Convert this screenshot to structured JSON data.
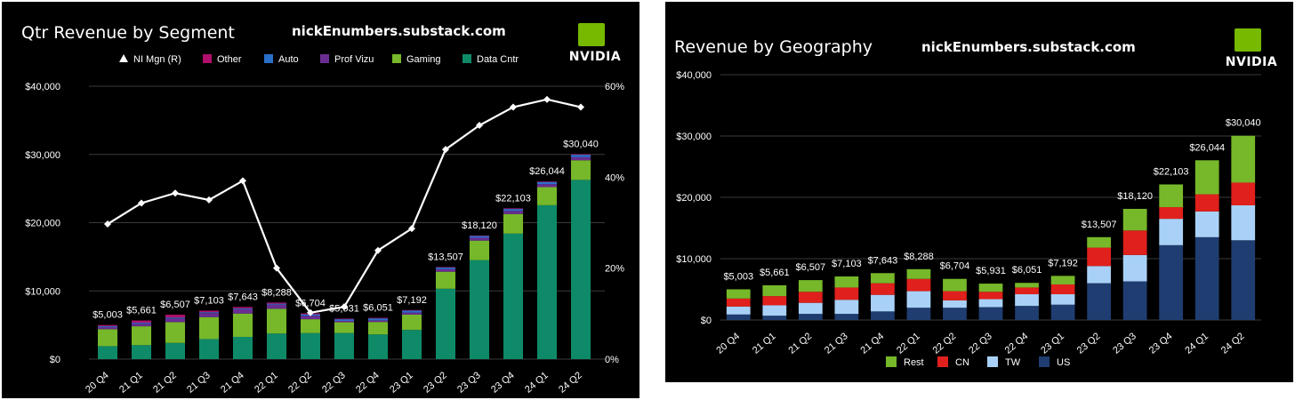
{
  "left_panel": {
    "title": "Qtr Revenue by Segment",
    "watermark": "nickEnumbers.substack.com",
    "logo_text": "NVIDIA",
    "legend": [
      "NI Mgn (R)",
      "Other",
      "Auto",
      "Prof Vizu",
      "Gaming",
      "Data Cntr"
    ]
  },
  "right_panel": {
    "title": "Revenue by Geography",
    "watermark": "nickEnumbers.substack.com",
    "logo_text": "NVIDIA",
    "legend": [
      "Rest",
      "CN",
      "TW",
      "US"
    ]
  },
  "colors": {
    "data_cntr": "#0f8a68",
    "gaming": "#76b82a",
    "prof_vizu": "#6a2c91",
    "auto": "#2a6fc9",
    "other": "#b0106b",
    "us": "#1f3d70",
    "tw": "#a9d1f7",
    "cn": "#e0201c",
    "rest": "#76b82a",
    "line": "#ffffff"
  },
  "chart_data": [
    {
      "type": "bar",
      "stacked": true,
      "title": "Qtr Revenue by Segment",
      "categories": [
        "20 Q4",
        "21 Q1",
        "21 Q2",
        "21 Q3",
        "21 Q4",
        "22 Q1",
        "22 Q2",
        "22 Q3",
        "22 Q4",
        "23 Q1",
        "23 Q2",
        "23 Q3",
        "23 Q4",
        "24 Q1",
        "24 Q2"
      ],
      "totals": [
        5003,
        5661,
        6507,
        7103,
        7643,
        8288,
        6704,
        5931,
        6051,
        7192,
        13507,
        18120,
        22103,
        26044,
        30040
      ],
      "total_labels": [
        "$5,003",
        "$5,661",
        "$6,507",
        "$7,103",
        "$7,643",
        "$8,288",
        "$6,704",
        "$5,931",
        "$6,051",
        "$7,192",
        "$13,507",
        "$18,120",
        "$22,103",
        "$26,044",
        "$30,040"
      ],
      "series": [
        {
          "name": "Data Cntr",
          "values": [
            1900,
            2050,
            2370,
            2940,
            3260,
            3750,
            3810,
            3830,
            3620,
            4280,
            10320,
            14510,
            18400,
            22560,
            26270
          ]
        },
        {
          "name": "Gaming",
          "values": [
            2490,
            2760,
            3060,
            3220,
            3420,
            3620,
            2040,
            1570,
            1830,
            2240,
            2490,
            2860,
            2870,
            2650,
            2880
          ]
        },
        {
          "name": "Prof Vizu",
          "values": [
            310,
            370,
            520,
            580,
            640,
            620,
            500,
            200,
            230,
            300,
            380,
            420,
            460,
            430,
            450
          ]
        },
        {
          "name": "Auto",
          "values": [
            145,
            155,
            150,
            135,
            125,
            140,
            220,
            250,
            290,
            300,
            250,
            260,
            280,
            330,
            350
          ]
        },
        {
          "name": "Other",
          "values": [
            158,
            326,
            407,
            228,
            198,
            158,
            134,
            81,
            81,
            72,
            67,
            70,
            93,
            74,
            90
          ]
        }
      ],
      "line_series": {
        "name": "NI Mgn (R)",
        "values": [
          29.7,
          34.3,
          36.5,
          35,
          39.2,
          20,
          10.2,
          11.5,
          23.9,
          28.7,
          46.1,
          51.4,
          55.4,
          57.1,
          55.4
        ]
      },
      "y_ticks": [
        "$0",
        "$10,000",
        "$20,000",
        "$30,000",
        "$40,000"
      ],
      "ylim": [
        0,
        40000
      ],
      "y2_ticks": [
        "0%",
        "20%",
        "40%",
        "60%"
      ],
      "y2lim": [
        0,
        60
      ],
      "legend_position": "top"
    },
    {
      "type": "bar",
      "stacked": true,
      "title": "Revenue by Geography",
      "categories": [
        "20 Q4",
        "21 Q1",
        "21 Q2",
        "21 Q3",
        "21 Q4",
        "22 Q1",
        "22 Q2",
        "22 Q3",
        "22 Q4",
        "23 Q1",
        "23 Q2",
        "23 Q3",
        "23 Q4",
        "24 Q1",
        "24 Q2"
      ],
      "totals": [
        5003,
        5661,
        6507,
        7103,
        7643,
        8288,
        6704,
        5931,
        6051,
        7192,
        13507,
        18120,
        22103,
        26044,
        30040
      ],
      "total_labels": [
        "$5,003",
        "$5,661",
        "$6,507",
        "$7,103",
        "$7,643",
        "$8,288",
        "$6,704",
        "$5,931",
        "$6,051",
        "$7,192",
        "$13,507",
        "$18,120",
        "$22,103",
        "$26,044",
        "$30,040"
      ],
      "series": [
        {
          "name": "US",
          "values": [
            900,
            700,
            1000,
            1000,
            1400,
            2000,
            2000,
            2100,
            2300,
            2500,
            6000,
            6300,
            12200,
            13500,
            13000
          ]
        },
        {
          "name": "TW",
          "values": [
            1300,
            1700,
            1800,
            2300,
            2700,
            2700,
            1200,
            1300,
            1900,
            1700,
            2800,
            4300,
            4300,
            4200,
            5700
          ]
        },
        {
          "name": "CN",
          "values": [
            1300,
            1500,
            1800,
            2000,
            1900,
            2000,
            1500,
            1200,
            1100,
            1600,
            3000,
            4000,
            1900,
            2800,
            3700
          ]
        },
        {
          "name": "Rest",
          "values": [
            1503,
            1761,
            1907,
            1803,
            1643,
            1588,
            2004,
            1331,
            751,
            1392,
            1707,
            3520,
            3703,
            5544,
            7640
          ]
        }
      ],
      "y_ticks": [
        "$0",
        "$10,000",
        "$20,000",
        "$30,000",
        "$40,000"
      ],
      "ylim": [
        0,
        40000
      ],
      "legend_position": "bottom"
    }
  ]
}
